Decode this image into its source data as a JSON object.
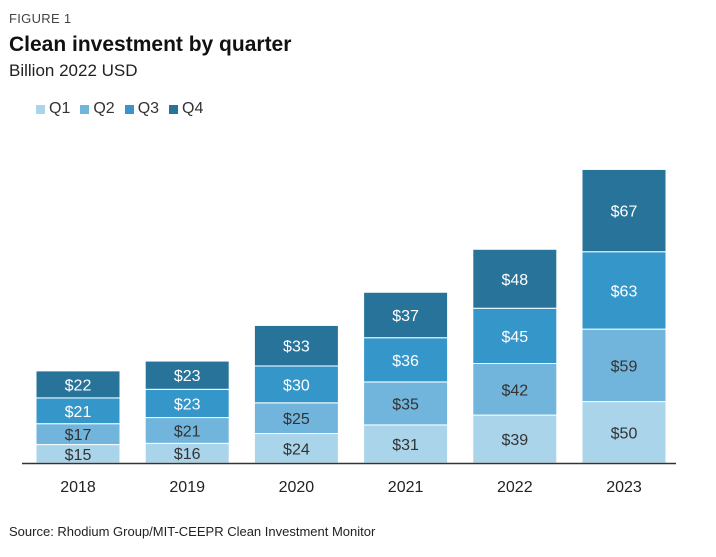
{
  "figure_label": "FIGURE 1",
  "colors": {
    "q1": "#a9d4ea",
    "q2": "#72b5dc",
    "q3": "#3596c9",
    "q4": "#27739a",
    "axis": "#333333"
  },
  "chart_data": {
    "type": "bar",
    "stacked": true,
    "title": "Clean investment by quarter",
    "subtitle": "Billion 2022 USD",
    "categories": [
      "2018",
      "2019",
      "2020",
      "2021",
      "2022",
      "2023"
    ],
    "series": [
      {
        "name": "Q1",
        "values": [
          15,
          16,
          24,
          31,
          39,
          50
        ]
      },
      {
        "name": "Q2",
        "values": [
          17,
          21,
          25,
          35,
          42,
          59
        ]
      },
      {
        "name": "Q3",
        "values": [
          21,
          23,
          30,
          36,
          45,
          63
        ]
      },
      {
        "name": "Q4",
        "values": [
          22,
          23,
          33,
          37,
          48,
          67
        ]
      }
    ],
    "value_labels": [
      [
        "$15",
        "$16",
        "$24",
        "$31",
        "$39",
        "$50"
      ],
      [
        "$17",
        "$21",
        "$25",
        "$35",
        "$42",
        "$59"
      ],
      [
        "$21",
        "$23",
        "$30",
        "$36",
        "$45",
        "$63"
      ],
      [
        "$22",
        "$23",
        "$33",
        "$37",
        "$48",
        "$67"
      ]
    ],
    "legend_position": "top-left",
    "grid": false,
    "ylim": [
      0,
      240
    ]
  },
  "source": "Source: Rhodium Group/MIT-CEEPR Clean Investment Monitor"
}
